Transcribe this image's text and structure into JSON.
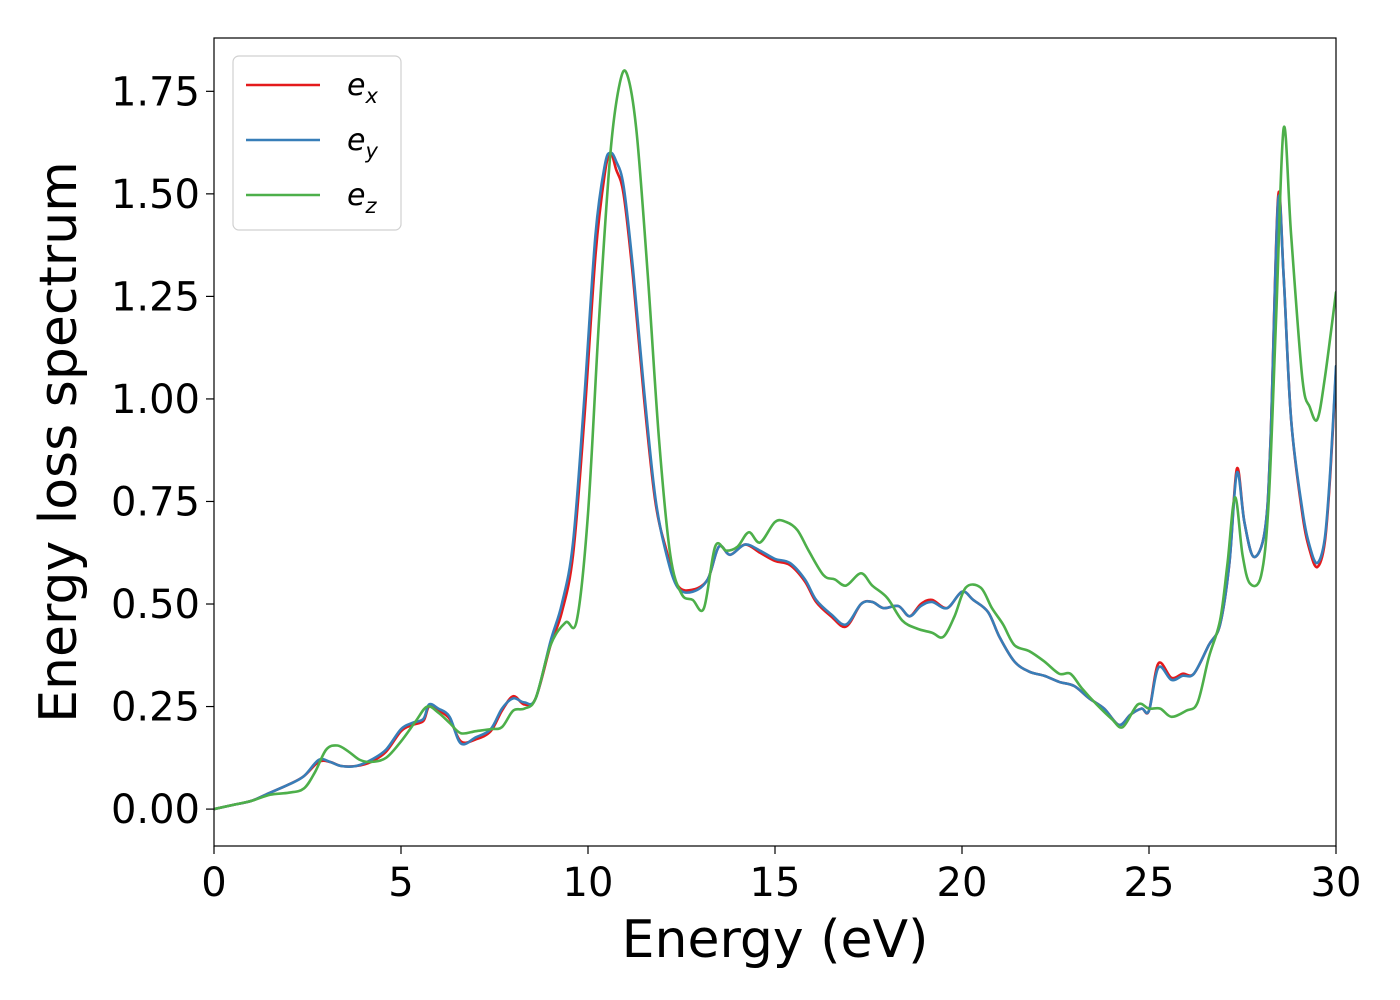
{
  "chart_data": {
    "type": "line",
    "title": "",
    "xlabel": "Energy (eV)",
    "ylabel": "Energy loss spectrum",
    "xlim": [
      0,
      30
    ],
    "ylim": [
      -0.09,
      1.88
    ],
    "xticks": [
      0,
      5,
      10,
      15,
      20,
      25,
      30
    ],
    "yticks": [
      0.0,
      0.25,
      0.5,
      0.75,
      1.0,
      1.25,
      1.5,
      1.75
    ],
    "xtick_labels": [
      "0",
      "5",
      "10",
      "15",
      "20",
      "25",
      "30"
    ],
    "ytick_labels": [
      "0.00",
      "0.25",
      "0.50",
      "0.75",
      "1.00",
      "1.25",
      "1.50",
      "1.75"
    ],
    "grid": false,
    "legend_position": "top-left",
    "series": [
      {
        "name": "e_x",
        "label_main": "e",
        "label_sub": "x",
        "color": "#e41a1c",
        "points": [
          [
            0,
            0
          ],
          [
            0.5,
            0.01
          ],
          [
            1,
            0.02
          ],
          [
            1.5,
            0.04
          ],
          [
            2,
            0.06
          ],
          [
            2.4,
            0.08
          ],
          [
            2.8,
            0.115
          ],
          [
            3.1,
            0.115
          ],
          [
            3.4,
            0.105
          ],
          [
            3.8,
            0.105
          ],
          [
            4.2,
            0.115
          ],
          [
            4.6,
            0.14
          ],
          [
            5,
            0.19
          ],
          [
            5.3,
            0.205
          ],
          [
            5.6,
            0.215
          ],
          [
            5.75,
            0.25
          ],
          [
            6,
            0.24
          ],
          [
            6.3,
            0.22
          ],
          [
            6.6,
            0.165
          ],
          [
            7,
            0.17
          ],
          [
            7.4,
            0.19
          ],
          [
            7.7,
            0.24
          ],
          [
            8,
            0.275
          ],
          [
            8.3,
            0.255
          ],
          [
            8.6,
            0.27
          ],
          [
            9,
            0.4
          ],
          [
            9.3,
            0.48
          ],
          [
            9.6,
            0.62
          ],
          [
            9.9,
            0.95
          ],
          [
            10.2,
            1.35
          ],
          [
            10.45,
            1.55
          ],
          [
            10.6,
            1.6
          ],
          [
            10.75,
            1.56
          ],
          [
            10.95,
            1.5
          ],
          [
            11.2,
            1.3
          ],
          [
            11.5,
            1.0
          ],
          [
            11.8,
            0.75
          ],
          [
            12.1,
            0.63
          ],
          [
            12.4,
            0.545
          ],
          [
            12.8,
            0.535
          ],
          [
            13.2,
            0.56
          ],
          [
            13.5,
            0.64
          ],
          [
            13.8,
            0.62
          ],
          [
            14.2,
            0.645
          ],
          [
            14.6,
            0.625
          ],
          [
            15,
            0.605
          ],
          [
            15.4,
            0.595
          ],
          [
            15.8,
            0.555
          ],
          [
            16.1,
            0.505
          ],
          [
            16.5,
            0.47
          ],
          [
            16.9,
            0.445
          ],
          [
            17.3,
            0.5
          ],
          [
            17.6,
            0.505
          ],
          [
            17.9,
            0.49
          ],
          [
            18.3,
            0.495
          ],
          [
            18.6,
            0.47
          ],
          [
            18.9,
            0.5
          ],
          [
            19.2,
            0.51
          ],
          [
            19.6,
            0.49
          ],
          [
            20,
            0.53
          ],
          [
            20.3,
            0.51
          ],
          [
            20.7,
            0.48
          ],
          [
            21,
            0.42
          ],
          [
            21.4,
            0.36
          ],
          [
            21.8,
            0.335
          ],
          [
            22.2,
            0.325
          ],
          [
            22.6,
            0.31
          ],
          [
            23,
            0.3
          ],
          [
            23.4,
            0.27
          ],
          [
            23.8,
            0.245
          ],
          [
            24.2,
            0.205
          ],
          [
            24.5,
            0.23
          ],
          [
            24.8,
            0.245
          ],
          [
            25,
            0.24
          ],
          [
            25.25,
            0.355
          ],
          [
            25.6,
            0.32
          ],
          [
            25.9,
            0.33
          ],
          [
            26.2,
            0.33
          ],
          [
            26.6,
            0.4
          ],
          [
            26.9,
            0.45
          ],
          [
            27.15,
            0.6
          ],
          [
            27.35,
            0.83
          ],
          [
            27.55,
            0.7
          ],
          [
            27.8,
            0.615
          ],
          [
            28.1,
            0.68
          ],
          [
            28.25,
            0.9
          ],
          [
            28.45,
            1.49
          ],
          [
            28.6,
            1.3
          ],
          [
            28.8,
            0.95
          ],
          [
            29.1,
            0.72
          ],
          [
            29.3,
            0.63
          ],
          [
            29.5,
            0.59
          ],
          [
            29.7,
            0.65
          ],
          [
            29.85,
            0.82
          ],
          [
            30,
            1.07
          ]
        ]
      },
      {
        "name": "e_y",
        "label_main": "e",
        "label_sub": "y",
        "color": "#377eb8",
        "points": [
          [
            0,
            0
          ],
          [
            0.5,
            0.01
          ],
          [
            1,
            0.02
          ],
          [
            1.5,
            0.04
          ],
          [
            2,
            0.06
          ],
          [
            2.4,
            0.08
          ],
          [
            2.8,
            0.12
          ],
          [
            3.1,
            0.115
          ],
          [
            3.4,
            0.105
          ],
          [
            3.8,
            0.105
          ],
          [
            4.2,
            0.12
          ],
          [
            4.6,
            0.145
          ],
          [
            5,
            0.195
          ],
          [
            5.3,
            0.21
          ],
          [
            5.6,
            0.22
          ],
          [
            5.75,
            0.255
          ],
          [
            6,
            0.245
          ],
          [
            6.3,
            0.225
          ],
          [
            6.6,
            0.16
          ],
          [
            7,
            0.175
          ],
          [
            7.4,
            0.195
          ],
          [
            7.7,
            0.245
          ],
          [
            8,
            0.27
          ],
          [
            8.3,
            0.26
          ],
          [
            8.6,
            0.27
          ],
          [
            9,
            0.41
          ],
          [
            9.3,
            0.5
          ],
          [
            9.6,
            0.65
          ],
          [
            9.9,
            1.0
          ],
          [
            10.2,
            1.4
          ],
          [
            10.45,
            1.57
          ],
          [
            10.6,
            1.6
          ],
          [
            10.75,
            1.58
          ],
          [
            10.95,
            1.52
          ],
          [
            11.2,
            1.32
          ],
          [
            11.5,
            1.02
          ],
          [
            11.8,
            0.76
          ],
          [
            12.1,
            0.62
          ],
          [
            12.4,
            0.54
          ],
          [
            12.8,
            0.53
          ],
          [
            13.2,
            0.56
          ],
          [
            13.5,
            0.64
          ],
          [
            13.8,
            0.62
          ],
          [
            14.2,
            0.645
          ],
          [
            14.6,
            0.63
          ],
          [
            15,
            0.61
          ],
          [
            15.4,
            0.6
          ],
          [
            15.8,
            0.56
          ],
          [
            16.1,
            0.51
          ],
          [
            16.5,
            0.475
          ],
          [
            16.9,
            0.45
          ],
          [
            17.3,
            0.5
          ],
          [
            17.6,
            0.505
          ],
          [
            17.9,
            0.49
          ],
          [
            18.3,
            0.495
          ],
          [
            18.6,
            0.47
          ],
          [
            18.9,
            0.495
          ],
          [
            19.2,
            0.505
          ],
          [
            19.6,
            0.49
          ],
          [
            20,
            0.53
          ],
          [
            20.3,
            0.51
          ],
          [
            20.7,
            0.48
          ],
          [
            21,
            0.42
          ],
          [
            21.4,
            0.36
          ],
          [
            21.8,
            0.335
          ],
          [
            22.2,
            0.325
          ],
          [
            22.6,
            0.31
          ],
          [
            23,
            0.3
          ],
          [
            23.4,
            0.27
          ],
          [
            23.8,
            0.245
          ],
          [
            24.2,
            0.205
          ],
          [
            24.5,
            0.23
          ],
          [
            24.8,
            0.245
          ],
          [
            25,
            0.24
          ],
          [
            25.25,
            0.345
          ],
          [
            25.6,
            0.315
          ],
          [
            25.9,
            0.325
          ],
          [
            26.2,
            0.33
          ],
          [
            26.6,
            0.4
          ],
          [
            26.9,
            0.45
          ],
          [
            27.15,
            0.6
          ],
          [
            27.35,
            0.82
          ],
          [
            27.55,
            0.7
          ],
          [
            27.8,
            0.615
          ],
          [
            28.1,
            0.68
          ],
          [
            28.25,
            0.9
          ],
          [
            28.45,
            1.48
          ],
          [
            28.6,
            1.3
          ],
          [
            28.8,
            0.95
          ],
          [
            29.1,
            0.73
          ],
          [
            29.3,
            0.64
          ],
          [
            29.5,
            0.6
          ],
          [
            29.7,
            0.66
          ],
          [
            29.85,
            0.83
          ],
          [
            30,
            1.08
          ]
        ]
      },
      {
        "name": "e_z",
        "label_main": "e",
        "label_sub": "z",
        "color": "#4daf4a",
        "points": [
          [
            0,
            0
          ],
          [
            0.5,
            0.01
          ],
          [
            1,
            0.02
          ],
          [
            1.5,
            0.035
          ],
          [
            2,
            0.04
          ],
          [
            2.4,
            0.05
          ],
          [
            2.7,
            0.09
          ],
          [
            3,
            0.145
          ],
          [
            3.3,
            0.155
          ],
          [
            3.6,
            0.14
          ],
          [
            3.9,
            0.12
          ],
          [
            4.2,
            0.115
          ],
          [
            4.6,
            0.125
          ],
          [
            5,
            0.165
          ],
          [
            5.4,
            0.215
          ],
          [
            5.7,
            0.25
          ],
          [
            6,
            0.235
          ],
          [
            6.3,
            0.21
          ],
          [
            6.6,
            0.185
          ],
          [
            7,
            0.19
          ],
          [
            7.4,
            0.195
          ],
          [
            7.7,
            0.2
          ],
          [
            8,
            0.24
          ],
          [
            8.3,
            0.245
          ],
          [
            8.6,
            0.27
          ],
          [
            9,
            0.4
          ],
          [
            9.4,
            0.455
          ],
          [
            9.7,
            0.46
          ],
          [
            10,
            0.72
          ],
          [
            10.3,
            1.2
          ],
          [
            10.6,
            1.6
          ],
          [
            10.85,
            1.77
          ],
          [
            11.05,
            1.79
          ],
          [
            11.3,
            1.65
          ],
          [
            11.6,
            1.3
          ],
          [
            11.9,
            0.9
          ],
          [
            12.2,
            0.62
          ],
          [
            12.5,
            0.525
          ],
          [
            12.8,
            0.51
          ],
          [
            13.1,
            0.49
          ],
          [
            13.4,
            0.64
          ],
          [
            13.7,
            0.63
          ],
          [
            14,
            0.64
          ],
          [
            14.3,
            0.675
          ],
          [
            14.6,
            0.65
          ],
          [
            15,
            0.7
          ],
          [
            15.3,
            0.7
          ],
          [
            15.6,
            0.68
          ],
          [
            15.9,
            0.63
          ],
          [
            16.3,
            0.57
          ],
          [
            16.6,
            0.56
          ],
          [
            16.9,
            0.545
          ],
          [
            17.3,
            0.575
          ],
          [
            17.6,
            0.545
          ],
          [
            18,
            0.515
          ],
          [
            18.4,
            0.46
          ],
          [
            18.8,
            0.44
          ],
          [
            19.2,
            0.43
          ],
          [
            19.5,
            0.42
          ],
          [
            19.8,
            0.47
          ],
          [
            20.1,
            0.54
          ],
          [
            20.5,
            0.54
          ],
          [
            20.8,
            0.49
          ],
          [
            21.1,
            0.45
          ],
          [
            21.4,
            0.4
          ],
          [
            21.8,
            0.385
          ],
          [
            22.2,
            0.36
          ],
          [
            22.6,
            0.33
          ],
          [
            22.9,
            0.33
          ],
          [
            23.2,
            0.295
          ],
          [
            23.6,
            0.255
          ],
          [
            24,
            0.22
          ],
          [
            24.3,
            0.2
          ],
          [
            24.7,
            0.255
          ],
          [
            25,
            0.245
          ],
          [
            25.3,
            0.245
          ],
          [
            25.6,
            0.225
          ],
          [
            26,
            0.24
          ],
          [
            26.3,
            0.26
          ],
          [
            26.6,
            0.37
          ],
          [
            26.9,
            0.46
          ],
          [
            27.1,
            0.6
          ],
          [
            27.3,
            0.76
          ],
          [
            27.5,
            0.62
          ],
          [
            27.7,
            0.55
          ],
          [
            28,
            0.57
          ],
          [
            28.2,
            0.75
          ],
          [
            28.4,
            1.2
          ],
          [
            28.6,
            1.66
          ],
          [
            28.8,
            1.4
          ],
          [
            29.1,
            1.05
          ],
          [
            29.3,
            0.98
          ],
          [
            29.5,
            0.95
          ],
          [
            29.7,
            1.05
          ],
          [
            30,
            1.26
          ]
        ]
      }
    ]
  }
}
